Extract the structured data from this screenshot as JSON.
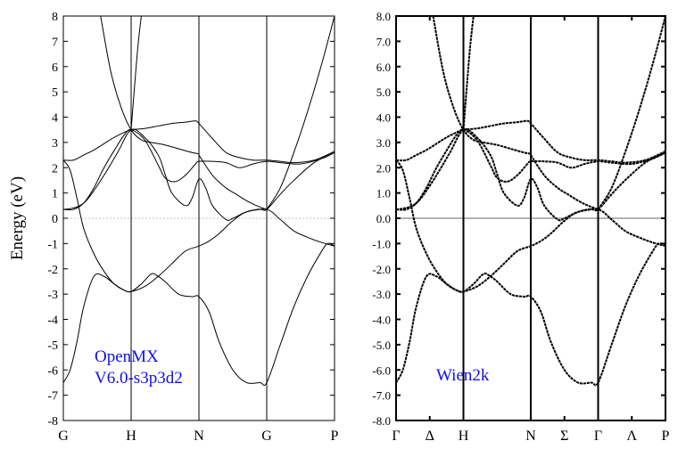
{
  "colors": {
    "axis": "#000000",
    "band": "#000000",
    "zero_left": "#b0b0b0",
    "zero_right": "#666666",
    "annotation": "#1010e0"
  },
  "chart_data": [
    {
      "type": "line",
      "title": "",
      "xlabel": "",
      "ylabel": "Energy (eV)",
      "ylim": [
        -8,
        8
      ],
      "xlim": [
        0,
        4
      ],
      "y_ticks": [
        -8,
        -7,
        -6,
        -5,
        -4,
        -3,
        -2,
        -1,
        0,
        1,
        2,
        3,
        4,
        5,
        6,
        7,
        8
      ],
      "y_tick_labels": [
        "-8",
        "-7",
        "-6",
        "-5",
        "-4",
        "-3",
        "-2",
        "-1",
        "0",
        "1",
        "2",
        "3",
        "4",
        "5",
        "6",
        "7",
        "8"
      ],
      "k_points": [
        {
          "label": "G",
          "x": 0
        },
        {
          "label": "H",
          "x": 1
        },
        {
          "label": "N",
          "x": 2
        },
        {
          "label": "G",
          "x": 3
        },
        {
          "label": "P",
          "x": 4
        }
      ],
      "annotation": [
        "OpenMX",
        "V6.0-s3p3d2"
      ],
      "zero_line": "dotted",
      "series": [
        {
          "x": [
            0,
            0.1,
            0.2,
            0.3,
            0.45,
            0.6,
            0.75,
            0.9,
            1.0,
            1.15,
            1.3,
            1.4,
            1.5,
            1.7,
            1.9,
            2.0,
            2.15,
            2.3,
            2.5,
            2.7,
            2.9,
            3.0,
            3.2,
            3.4,
            3.6,
            3.8,
            3.9,
            4.0
          ],
          "y": [
            -6.5,
            -6.0,
            -4.9,
            -3.5,
            -2.3,
            -2.3,
            -2.6,
            -2.85,
            -2.9,
            -2.6,
            -2.2,
            -2.3,
            -2.5,
            -3.0,
            -3.1,
            -3.1,
            -3.7,
            -4.9,
            -6.0,
            -6.5,
            -6.5,
            -6.5,
            -5.0,
            -3.5,
            -2.3,
            -1.35,
            -1.0,
            -1.1
          ]
        },
        {
          "x": [
            0,
            0.1,
            0.2,
            0.3,
            0.45,
            0.6,
            0.75,
            0.9,
            1.0,
            1.2,
            1.4,
            1.6,
            1.8,
            2.0,
            2.15,
            2.3,
            2.5,
            2.7,
            3.0,
            3.2,
            3.4,
            3.6,
            3.8,
            4.0
          ],
          "y": [
            2.3,
            1.9,
            0.8,
            -0.4,
            -1.4,
            -2.1,
            -2.6,
            -2.85,
            -2.9,
            -2.7,
            -2.3,
            -1.8,
            -1.3,
            -1.1,
            -0.9,
            -0.6,
            -0.1,
            0.25,
            0.35,
            -0.05,
            -0.5,
            -0.75,
            -0.95,
            -1.1
          ]
        },
        {
          "x": [
            0,
            0.1,
            0.2,
            0.3,
            0.4,
            0.6,
            0.8,
            1.0,
            1.2,
            1.4,
            1.5,
            1.6,
            1.8,
            1.9,
            2.0,
            2.1,
            2.2,
            2.4,
            2.5,
            2.7,
            2.9,
            3.0,
            3.2,
            3.4,
            3.7,
            4.0
          ],
          "y": [
            0.35,
            0.38,
            0.45,
            0.6,
            0.9,
            1.7,
            2.6,
            3.5,
            3.2,
            2.5,
            1.75,
            1.0,
            0.5,
            0.8,
            1.55,
            1.2,
            0.5,
            -0.05,
            0.0,
            0.25,
            0.35,
            0.35,
            0.95,
            1.5,
            2.2,
            2.6
          ]
        },
        {
          "x": [
            0,
            0.15,
            0.3,
            0.45,
            0.6,
            0.8,
            0.9,
            1.0,
            1.2,
            1.4,
            1.5,
            1.65,
            1.8,
            1.95,
            2.0,
            2.2,
            2.4,
            2.6,
            2.8,
            3.0,
            3.2,
            3.5,
            3.8,
            4.0
          ],
          "y": [
            0.35,
            0.35,
            0.6,
            1.2,
            2.0,
            2.9,
            3.3,
            3.5,
            3.1,
            2.1,
            1.6,
            1.45,
            1.7,
            2.15,
            2.25,
            2.25,
            2.2,
            2.0,
            2.15,
            2.25,
            2.2,
            2.15,
            2.35,
            2.6
          ]
        },
        {
          "x": [
            0,
            0.15,
            0.3,
            0.45,
            0.6,
            0.75,
            0.9,
            1.0,
            1.2,
            1.4,
            1.6,
            1.8,
            1.95,
            2.0,
            2.2,
            2.4,
            2.6,
            2.8,
            3.0,
            3.2,
            3.4,
            3.7,
            4.0
          ],
          "y": [
            2.3,
            2.3,
            2.5,
            2.7,
            2.95,
            3.2,
            3.4,
            3.5,
            3.55,
            3.65,
            3.75,
            3.8,
            3.85,
            3.75,
            3.15,
            2.6,
            2.4,
            2.3,
            2.3,
            2.25,
            2.2,
            2.3,
            2.65
          ]
        },
        {
          "x": [
            2.0,
            2.2,
            2.4,
            2.55,
            2.7,
            2.85,
            3.0
          ],
          "y": [
            2.5,
            1.7,
            1.2,
            0.95,
            0.7,
            0.5,
            0.35
          ]
        },
        {
          "x": [
            0.55,
            0.7,
            0.85,
            1.0,
            1.15,
            1.3,
            1.5,
            1.7,
            1.9,
            2.0
          ],
          "y": [
            8.0,
            5.8,
            4.4,
            3.5,
            3.1,
            3.0,
            2.9,
            2.75,
            2.6,
            2.55
          ]
        },
        {
          "x": [
            3.0,
            3.2,
            3.4,
            3.6,
            3.8,
            4.0
          ],
          "y": [
            0.35,
            1.2,
            2.6,
            4.2,
            6.0,
            8.0
          ]
        },
        {
          "x": [
            1.0,
            1.05,
            1.1,
            1.15
          ],
          "y": [
            3.5,
            5.2,
            6.8,
            8.0
          ]
        }
      ]
    },
    {
      "type": "line",
      "title": "",
      "xlabel": "",
      "ylabel": "",
      "ylim": [
        -8,
        8
      ],
      "xlim": [
        0,
        4
      ],
      "y_ticks": [
        -8,
        -7,
        -6,
        -5,
        -4,
        -3,
        -2,
        -1,
        0,
        1,
        2,
        3,
        4,
        5,
        6,
        7,
        8
      ],
      "y_tick_labels": [
        "-8.0",
        "-7.0",
        "-6.0",
        "-5.0",
        "-4.0",
        "-3.0",
        "-2.0",
        "-1.0",
        "0.0",
        "1.0",
        "2.0",
        "3.0",
        "4.0",
        "5.0",
        "6.0",
        "7.0",
        "8.0"
      ],
      "k_points": [
        {
          "label": "Γ",
          "x": 0
        },
        {
          "label": "Δ",
          "x": 0.5
        },
        {
          "label": "H",
          "x": 1
        },
        {
          "label": "N",
          "x": 2
        },
        {
          "label": "Σ",
          "x": 2.5
        },
        {
          "label": "Γ",
          "x": 3
        },
        {
          "label": "Λ",
          "x": 3.5
        },
        {
          "label": "P",
          "x": 4
        }
      ],
      "k_lines": [
        1,
        2,
        3
      ],
      "annotation": [
        "Wien2k"
      ],
      "zero_line": "solid",
      "series": [
        {
          "x": [
            0,
            0.1,
            0.2,
            0.3,
            0.45,
            0.6,
            0.75,
            0.9,
            1.0,
            1.15,
            1.3,
            1.4,
            1.5,
            1.7,
            1.9,
            2.0,
            2.15,
            2.3,
            2.5,
            2.7,
            2.9,
            3.0,
            3.2,
            3.4,
            3.6,
            3.8,
            3.9,
            4.0
          ],
          "y": [
            -6.5,
            -6.0,
            -4.9,
            -3.5,
            -2.3,
            -2.3,
            -2.6,
            -2.85,
            -2.9,
            -2.6,
            -2.2,
            -2.3,
            -2.5,
            -3.0,
            -3.1,
            -3.1,
            -3.7,
            -4.9,
            -6.0,
            -6.5,
            -6.5,
            -6.5,
            -5.0,
            -3.5,
            -2.3,
            -1.35,
            -1.0,
            -1.1
          ]
        },
        {
          "x": [
            0,
            0.1,
            0.2,
            0.3,
            0.45,
            0.6,
            0.75,
            0.9,
            1.0,
            1.2,
            1.4,
            1.6,
            1.8,
            2.0,
            2.15,
            2.3,
            2.5,
            2.7,
            3.0,
            3.2,
            3.4,
            3.6,
            3.8,
            4.0
          ],
          "y": [
            2.3,
            1.9,
            0.8,
            -0.4,
            -1.4,
            -2.1,
            -2.6,
            -2.85,
            -2.9,
            -2.7,
            -2.3,
            -1.8,
            -1.3,
            -1.1,
            -0.9,
            -0.6,
            -0.1,
            0.25,
            0.35,
            -0.05,
            -0.5,
            -0.75,
            -0.95,
            -1.1
          ]
        },
        {
          "x": [
            0,
            0.1,
            0.2,
            0.3,
            0.4,
            0.6,
            0.8,
            1.0,
            1.2,
            1.4,
            1.5,
            1.6,
            1.8,
            1.9,
            2.0,
            2.1,
            2.2,
            2.4,
            2.5,
            2.7,
            2.9,
            3.0,
            3.2,
            3.4,
            3.7,
            4.0
          ],
          "y": [
            0.35,
            0.38,
            0.45,
            0.6,
            0.9,
            1.7,
            2.6,
            3.5,
            3.2,
            2.5,
            1.75,
            1.0,
            0.5,
            0.8,
            1.55,
            1.2,
            0.5,
            -0.05,
            0.0,
            0.25,
            0.35,
            0.35,
            0.95,
            1.5,
            2.2,
            2.6
          ]
        },
        {
          "x": [
            0,
            0.15,
            0.3,
            0.45,
            0.6,
            0.8,
            0.9,
            1.0,
            1.2,
            1.4,
            1.5,
            1.65,
            1.8,
            1.95,
            2.0,
            2.2,
            2.4,
            2.6,
            2.8,
            3.0,
            3.2,
            3.5,
            3.8,
            4.0
          ],
          "y": [
            0.35,
            0.35,
            0.6,
            1.2,
            2.0,
            2.9,
            3.3,
            3.5,
            3.1,
            2.1,
            1.6,
            1.45,
            1.7,
            2.15,
            2.25,
            2.25,
            2.2,
            2.0,
            2.15,
            2.25,
            2.2,
            2.15,
            2.35,
            2.6
          ]
        },
        {
          "x": [
            0,
            0.15,
            0.3,
            0.45,
            0.6,
            0.75,
            0.9,
            1.0,
            1.2,
            1.4,
            1.6,
            1.8,
            1.95,
            2.0,
            2.2,
            2.4,
            2.6,
            2.8,
            3.0,
            3.2,
            3.4,
            3.7,
            4.0
          ],
          "y": [
            2.3,
            2.3,
            2.5,
            2.7,
            2.95,
            3.2,
            3.4,
            3.5,
            3.55,
            3.65,
            3.75,
            3.8,
            3.85,
            3.75,
            3.15,
            2.6,
            2.4,
            2.3,
            2.3,
            2.25,
            2.2,
            2.3,
            2.65
          ]
        },
        {
          "x": [
            2.0,
            2.2,
            2.4,
            2.55,
            2.7,
            2.85,
            3.0
          ],
          "y": [
            2.5,
            1.7,
            1.2,
            0.95,
            0.7,
            0.5,
            0.35
          ]
        },
        {
          "x": [
            0.55,
            0.7,
            0.85,
            1.0,
            1.15,
            1.3,
            1.5,
            1.7,
            1.9,
            2.0
          ],
          "y": [
            8.0,
            5.8,
            4.4,
            3.5,
            3.1,
            3.0,
            2.9,
            2.75,
            2.6,
            2.55
          ]
        },
        {
          "x": [
            3.0,
            3.2,
            3.4,
            3.6,
            3.8,
            4.0
          ],
          "y": [
            0.35,
            1.2,
            2.6,
            4.2,
            6.0,
            8.0
          ]
        },
        {
          "x": [
            1.0,
            1.05,
            1.1,
            1.15
          ],
          "y": [
            3.5,
            5.2,
            6.8,
            8.0
          ]
        }
      ]
    }
  ]
}
